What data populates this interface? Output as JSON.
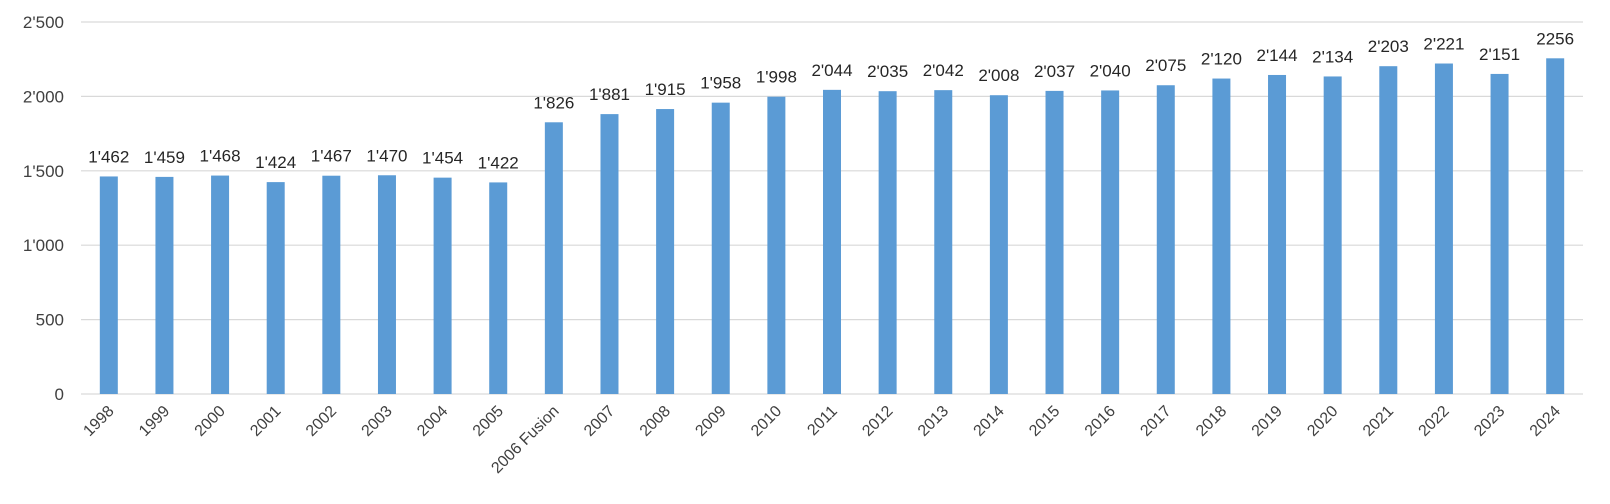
{
  "chart_data": {
    "type": "bar",
    "categories": [
      "1998",
      "1999",
      "2000",
      "2001",
      "2002",
      "2003",
      "2004",
      "2005",
      "2006 Fusion",
      "2007",
      "2008",
      "2009",
      "2010",
      "2011",
      "2012",
      "2013",
      "2014",
      "2015",
      "2016",
      "2017",
      "2018",
      "2019",
      "2020",
      "2021",
      "2022",
      "2023",
      "2024"
    ],
    "values": [
      1462,
      1459,
      1468,
      1424,
      1467,
      1470,
      1454,
      1422,
      1826,
      1881,
      1915,
      1958,
      1998,
      2044,
      2035,
      2042,
      2008,
      2037,
      2040,
      2075,
      2120,
      2144,
      2134,
      2203,
      2221,
      2151,
      2256
    ],
    "data_labels": [
      "1'462",
      "1'459",
      "1'468",
      "1'424",
      "1'467",
      "1'470",
      "1'454",
      "1'422",
      "1'826",
      "1'881",
      "1'915",
      "1'958",
      "1'998",
      "2'044",
      "2'035",
      "2'042",
      "2'008",
      "2'037",
      "2'040",
      "2'075",
      "2'120",
      "2'144",
      "2'134",
      "2'203",
      "2'221",
      "2'151",
      "2256"
    ],
    "y_ticks": [
      0,
      500,
      1000,
      1500,
      2000,
      2500
    ],
    "y_tick_labels": [
      "0",
      "500",
      "1'000",
      "1'500",
      "2'000",
      "2'500"
    ],
    "ylim": [
      0,
      2500
    ],
    "grid": true,
    "legend": "none",
    "bar_color": "#5b9bd5",
    "title": "",
    "xlabel": "",
    "ylabel": ""
  }
}
